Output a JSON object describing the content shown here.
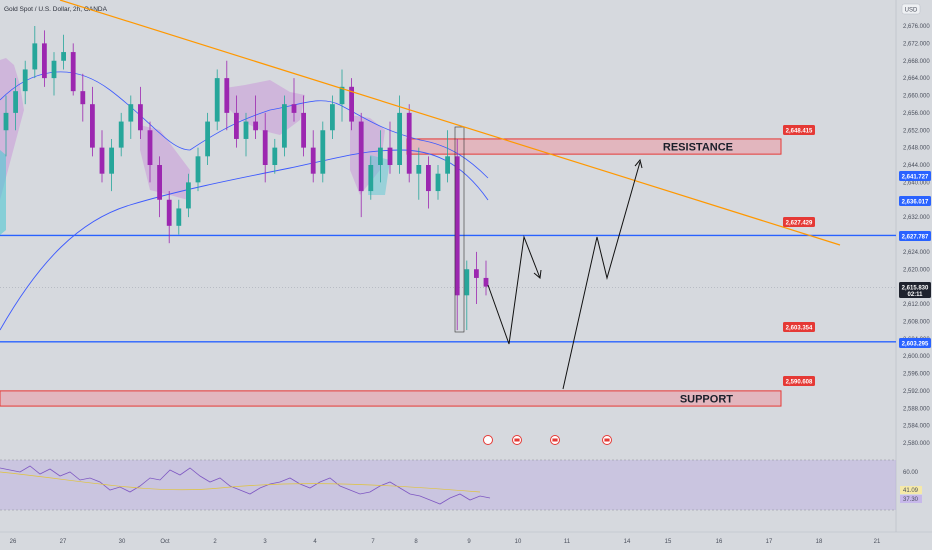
{
  "header": {
    "title": "Gold Spot / U.S. Dollar, 2h, OANDA",
    "currency": "USD"
  },
  "chart_data": {
    "type": "candlestick",
    "title": "Gold Spot / U.S. Dollar, 2h, OANDA",
    "symbol": "XAUUSD",
    "timeframe": "2h",
    "source": "OANDA",
    "y_ticks": [
      "2,676.000",
      "2,672.000",
      "2,668.000",
      "2,664.000",
      "2,660.000",
      "2,656.000",
      "2,652.000",
      "2,648.000",
      "2,644.000",
      "2,640.000",
      "2,636.000",
      "2,632.000",
      "2,628.000",
      "2,624.000",
      "2,620.000",
      "2,616.000",
      "2,612.000",
      "2,608.000",
      "2,604.000",
      "2,600.000",
      "2,596.000",
      "2,592.000",
      "2,588.000",
      "2,584.000",
      "2,580.000"
    ],
    "x_ticks": [
      "26",
      "27",
      "30",
      "Oct",
      "2",
      "3",
      "4",
      "7",
      "8",
      "9",
      "10",
      "11",
      "14",
      "15",
      "16",
      "17",
      "18",
      "21"
    ],
    "price_tags": [
      {
        "label": "2,648.415",
        "color": "#e53935"
      },
      {
        "label": "2,641.727",
        "color": "#2962ff"
      },
      {
        "label": "2,636.017",
        "color": "#2962ff"
      },
      {
        "label": "2,627.429",
        "color": "#e53935"
      },
      {
        "label": "2,627.787",
        "color": "#2962ff"
      },
      {
        "label": "2,615.830",
        "color": "#1e222d",
        "sub": "02:11"
      },
      {
        "label": "2,603.354",
        "color": "#e53935"
      },
      {
        "label": "2,603.295",
        "color": "#2962ff"
      },
      {
        "label": "2,590.608",
        "color": "#e53935"
      }
    ],
    "zones": [
      {
        "name": "RESISTANCE",
        "value": 2648.415,
        "low": 2646.5,
        "high": 2650.0
      },
      {
        "name": "SUPPORT",
        "value": 2590.608,
        "low": 2588.5,
        "high": 2592.0
      }
    ],
    "horizontal_lines": [
      2627.787,
      2603.295
    ],
    "current_price": 2615.83,
    "rsi": {
      "upper": "60.00",
      "values": [
        "41.09",
        "37.30"
      ]
    },
    "candles_approx": [
      [
        2652,
        2660,
        2646,
        2656
      ],
      [
        2656,
        2664,
        2652,
        2661
      ],
      [
        2661,
        2668,
        2658,
        2666
      ],
      [
        2666,
        2676,
        2664,
        2672
      ],
      [
        2672,
        2675,
        2662,
        2664
      ],
      [
        2664,
        2670,
        2660,
        2668
      ],
      [
        2668,
        2674,
        2666,
        2670
      ],
      [
        2670,
        2672,
        2660,
        2661
      ],
      [
        2661,
        2665,
        2654,
        2658
      ],
      [
        2658,
        2662,
        2646,
        2648
      ],
      [
        2648,
        2652,
        2640,
        2642
      ],
      [
        2642,
        2650,
        2638,
        2648
      ],
      [
        2648,
        2656,
        2646,
        2654
      ],
      [
        2654,
        2660,
        2650,
        2658
      ],
      [
        2658,
        2662,
        2650,
        2652
      ],
      [
        2652,
        2654,
        2640,
        2644
      ],
      [
        2644,
        2646,
        2632,
        2636
      ],
      [
        2636,
        2638,
        2626,
        2630
      ],
      [
        2630,
        2636,
        2628,
        2634
      ],
      [
        2634,
        2642,
        2632,
        2640
      ],
      [
        2640,
        2648,
        2638,
        2646
      ],
      [
        2646,
        2656,
        2644,
        2654
      ],
      [
        2654,
        2666,
        2652,
        2664
      ],
      [
        2664,
        2668,
        2652,
        2656
      ],
      [
        2656,
        2660,
        2648,
        2650
      ],
      [
        2650,
        2656,
        2646,
        2654
      ],
      [
        2654,
        2660,
        2650,
        2652
      ],
      [
        2652,
        2656,
        2640,
        2644
      ],
      [
        2644,
        2650,
        2642,
        2648
      ],
      [
        2648,
        2660,
        2646,
        2658
      ],
      [
        2658,
        2664,
        2654,
        2656
      ],
      [
        2656,
        2660,
        2646,
        2648
      ],
      [
        2648,
        2652,
        2640,
        2642
      ],
      [
        2642,
        2654,
        2640,
        2652
      ],
      [
        2652,
        2660,
        2650,
        2658
      ],
      [
        2658,
        2666,
        2654,
        2662
      ],
      [
        2662,
        2664,
        2652,
        2654
      ],
      [
        2654,
        2656,
        2632,
        2638
      ],
      [
        2638,
        2646,
        2636,
        2644
      ],
      [
        2644,
        2652,
        2640,
        2648
      ],
      [
        2648,
        2654,
        2642,
        2644
      ],
      [
        2644,
        2660,
        2642,
        2656
      ],
      [
        2656,
        2658,
        2640,
        2642
      ],
      [
        2642,
        2648,
        2636,
        2644
      ],
      [
        2644,
        2646,
        2634,
        2638
      ],
      [
        2638,
        2644,
        2636,
        2642
      ],
      [
        2642,
        2652,
        2640,
        2646
      ],
      [
        2646,
        2650,
        2606,
        2614
      ],
      [
        2614,
        2622,
        2606,
        2620
      ],
      [
        2620,
        2624,
        2612,
        2618
      ],
      [
        2618,
        2622,
        2614,
        2616
      ]
    ],
    "forecast_path": [
      [
        2615.8
      ],
      [
        2603.3
      ],
      [
        2627.4
      ],
      [
        2618.5
      ],
      [
        2627.4
      ],
      [
        2618.5
      ],
      [
        2590.6
      ],
      [
        2646.0
      ]
    ]
  }
}
